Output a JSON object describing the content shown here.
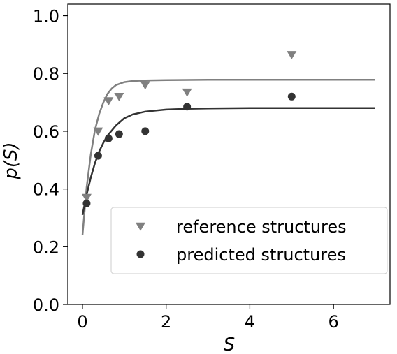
{
  "chart_data": {
    "type": "scatter",
    "xlabel": "S",
    "ylabel": "p(S)",
    "xlim": [
      -0.35,
      7.35
    ],
    "ylim": [
      0.0,
      1.04
    ],
    "xticks": [
      0,
      2,
      4,
      6
    ],
    "yticks": [
      0.0,
      0.2,
      0.4,
      0.6,
      0.8,
      1.0
    ],
    "xtick_labels": [
      "0",
      "2",
      "4",
      "6"
    ],
    "ytick_labels": [
      "0.0",
      "0.2",
      "0.4",
      "0.6",
      "0.8",
      "1.0"
    ],
    "grid": false,
    "legend_position": "lower-right",
    "series": [
      {
        "name": "reference structures",
        "marker": "triangle-down",
        "color": "#808080",
        "points": [
          {
            "x": 0.1,
            "y": 0.37
          },
          {
            "x": 0.375,
            "y": 0.6
          },
          {
            "x": 0.625,
            "y": 0.705
          },
          {
            "x": 0.875,
            "y": 0.72
          },
          {
            "x": 1.5,
            "y": 0.76
          },
          {
            "x": 2.5,
            "y": 0.735
          },
          {
            "x": 5.0,
            "y": 0.865
          }
        ],
        "fit": {
          "x": [
            0,
            0.1,
            0.2,
            0.3,
            0.4,
            0.5,
            0.6,
            0.7,
            0.8,
            1.0,
            1.2,
            1.5,
            2.0,
            3.0,
            5.0,
            7.0
          ],
          "y": [
            0.24,
            0.405,
            0.52,
            0.605,
            0.66,
            0.7,
            0.73,
            0.748,
            0.76,
            0.77,
            0.774,
            0.776,
            0.777,
            0.778,
            0.778,
            0.778
          ]
        }
      },
      {
        "name": "predicted structures",
        "marker": "circle",
        "color": "#333333",
        "points": [
          {
            "x": 0.1,
            "y": 0.35
          },
          {
            "x": 0.375,
            "y": 0.515
          },
          {
            "x": 0.625,
            "y": 0.575
          },
          {
            "x": 0.875,
            "y": 0.59
          },
          {
            "x": 1.5,
            "y": 0.6
          },
          {
            "x": 2.5,
            "y": 0.685
          },
          {
            "x": 5.0,
            "y": 0.72
          }
        ],
        "fit": {
          "x": [
            0,
            0.1,
            0.2,
            0.3,
            0.4,
            0.5,
            0.6,
            0.8,
            1.0,
            1.2,
            1.5,
            2.0,
            2.5,
            3.0,
            4.0,
            5.0,
            7.0
          ],
          "y": [
            0.31,
            0.38,
            0.44,
            0.49,
            0.53,
            0.56,
            0.585,
            0.62,
            0.645,
            0.658,
            0.668,
            0.675,
            0.678,
            0.679,
            0.68,
            0.68,
            0.68
          ]
        }
      }
    ]
  }
}
